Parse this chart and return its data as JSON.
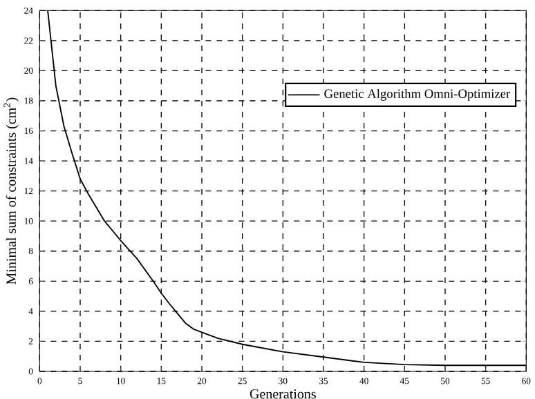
{
  "chart_data": {
    "type": "line",
    "xlabel": "Generations",
    "ylabel": "Minimal sum of constraints (cm$^{2}$)",
    "xlim": [
      0,
      60
    ],
    "ylim": [
      0,
      24
    ],
    "xticks": [
      0,
      5,
      10,
      15,
      20,
      25,
      30,
      35,
      40,
      45,
      50,
      55,
      60
    ],
    "yticks": [
      0,
      2,
      4,
      6,
      8,
      10,
      12,
      14,
      16,
      18,
      20,
      22,
      24
    ],
    "grid": true,
    "legend": "top right",
    "line_style": "solid",
    "marker": "none",
    "series": [
      {
        "name": "Genetic Algorithm Omni-Optimizer",
        "color": "#000000",
        "x": [
          1,
          2,
          3,
          4,
          5,
          6,
          8,
          10,
          12,
          14,
          15,
          16,
          18,
          19,
          20,
          22,
          25,
          30,
          35,
          40,
          45,
          50,
          55,
          60
        ],
        "values": [
          24,
          19,
          16.3,
          14.5,
          12.8,
          11.8,
          10,
          8.7,
          7.5,
          6,
          5.2,
          4.5,
          3.2,
          2.8,
          2.6,
          2.2,
          1.8,
          1.3,
          0.95,
          0.6,
          0.45,
          0.4,
          0.4,
          0.4
        ]
      }
    ]
  }
}
